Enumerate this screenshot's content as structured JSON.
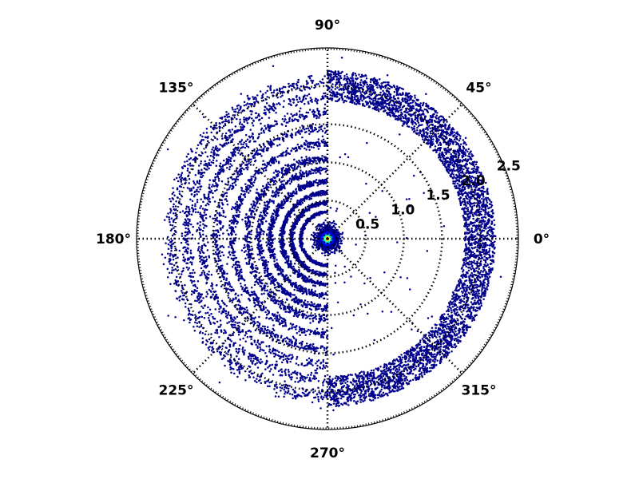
{
  "chart_data": {
    "type": "scatter",
    "projection": "polar",
    "title": "",
    "grid": true,
    "angle_tick_labels": [
      "0°",
      "45°",
      "90°",
      "135°",
      "180°",
      "225°",
      "270°",
      "315°"
    ],
    "angle_ticks_deg": [
      0,
      45,
      90,
      135,
      180,
      225,
      270,
      315
    ],
    "radial_tick_labels": [
      "0.5",
      "1.0",
      "1.5",
      "2.0",
      "2.5"
    ],
    "radial_ticks": [
      0.5,
      1.0,
      1.5,
      2.0,
      2.5
    ],
    "rlim": [
      0,
      2.5
    ],
    "colormap": "jet (point density)",
    "colors": {
      "low": "#00008b",
      "mid": "#00cc66",
      "high": "#ff3300",
      "peak": "#8b0000"
    },
    "series": [
      {
        "description": "right half outer band",
        "theta_range_deg": [
          -90,
          90
        ],
        "r_range": [
          1.8,
          2.2
        ],
        "count": 4200
      },
      {
        "description": "left half concentric rings",
        "theta_range_deg": [
          90,
          270
        ],
        "ring_radii": [
          0.35,
          0.47,
          0.6,
          0.75,
          0.9,
          1.05,
          1.25,
          1.45,
          1.65,
          1.85,
          2.05
        ],
        "count": 5000
      },
      {
        "description": "dense core at origin",
        "r_range": [
          0,
          0.27
        ],
        "count": 1800
      },
      {
        "description": "sparse scatter",
        "r_range": [
          0.3,
          2.4
        ],
        "count": 160
      }
    ]
  }
}
